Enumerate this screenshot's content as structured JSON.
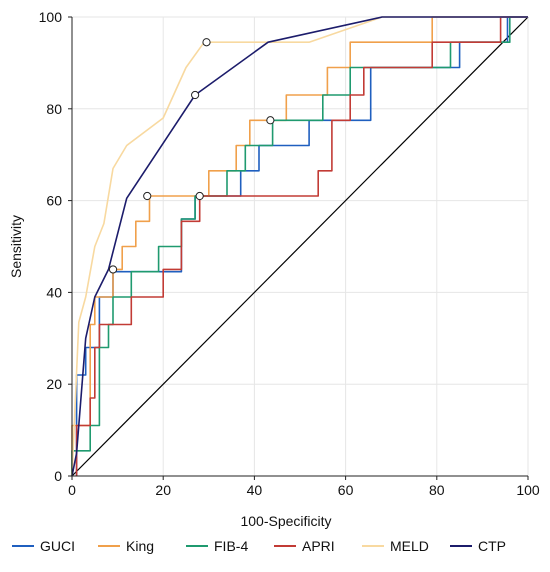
{
  "chart_data": {
    "type": "line",
    "xlabel": "100-Specificity",
    "ylabel": "Sensitivity",
    "xlim": [
      0,
      100
    ],
    "ylim": [
      0,
      100
    ],
    "xticks": [
      "0",
      "20",
      "40",
      "60",
      "80",
      "100"
    ],
    "yticks": [
      "0",
      "20",
      "40",
      "60",
      "80",
      "100"
    ],
    "grid": true,
    "legend_position": "bottom",
    "reference_line": {
      "x": [
        0,
        100
      ],
      "y": [
        0,
        100
      ],
      "color": "#000000"
    },
    "series": [
      {
        "name": "GUCI",
        "color": "#1f5fbf",
        "points": [
          [
            1,
            0
          ],
          [
            1,
            22
          ],
          [
            3,
            22
          ],
          [
            3,
            28
          ],
          [
            6,
            28
          ],
          [
            6,
            39
          ],
          [
            9,
            39
          ],
          [
            9,
            44.5
          ],
          [
            24,
            44.5
          ],
          [
            24,
            56
          ],
          [
            27,
            56
          ],
          [
            27,
            61
          ],
          [
            37,
            61
          ],
          [
            37,
            66.5
          ],
          [
            41,
            66.5
          ],
          [
            41,
            72
          ],
          [
            52,
            72
          ],
          [
            52,
            77.5
          ],
          [
            65.5,
            77.5
          ],
          [
            65.5,
            89
          ],
          [
            85,
            89
          ],
          [
            85,
            94.5
          ],
          [
            95.5,
            94.5
          ],
          [
            95.5,
            100
          ],
          [
            100,
            100
          ]
        ]
      },
      {
        "name": "King",
        "color": "#f0a04b",
        "points": [
          [
            0,
            0
          ],
          [
            0,
            11
          ],
          [
            4,
            11
          ],
          [
            4,
            33
          ],
          [
            5,
            33
          ],
          [
            5,
            39
          ],
          [
            9,
            39
          ],
          [
            9,
            45
          ],
          [
            11,
            45
          ],
          [
            11,
            50
          ],
          [
            14,
            50
          ],
          [
            14,
            55.5
          ],
          [
            17,
            55.5
          ],
          [
            17,
            61
          ],
          [
            30,
            61
          ],
          [
            30,
            66.5
          ],
          [
            36,
            66.5
          ],
          [
            36,
            72
          ],
          [
            39,
            72
          ],
          [
            39,
            77.5
          ],
          [
            47,
            77.5
          ],
          [
            47,
            83
          ],
          [
            56,
            83
          ],
          [
            56,
            89
          ],
          [
            61,
            89
          ],
          [
            61,
            94.5
          ],
          [
            79,
            94.5
          ],
          [
            79,
            100
          ],
          [
            100,
            100
          ]
        ]
      },
      {
        "name": "FIB-4",
        "color": "#1f9a6f",
        "points": [
          [
            0,
            0
          ],
          [
            0,
            5.5
          ],
          [
            4,
            5.5
          ],
          [
            4,
            11
          ],
          [
            6,
            11
          ],
          [
            6,
            28
          ],
          [
            8,
            28
          ],
          [
            8,
            33
          ],
          [
            9,
            33
          ],
          [
            9,
            39
          ],
          [
            13,
            39
          ],
          [
            13,
            44.5
          ],
          [
            19,
            44.5
          ],
          [
            19,
            50
          ],
          [
            24,
            50
          ],
          [
            24,
            56
          ],
          [
            27,
            56
          ],
          [
            27,
            61
          ],
          [
            34,
            61
          ],
          [
            34,
            66.5
          ],
          [
            38,
            66.5
          ],
          [
            38,
            72
          ],
          [
            44,
            72
          ],
          [
            44,
            77.5
          ],
          [
            55,
            77.5
          ],
          [
            55,
            83
          ],
          [
            61,
            83
          ],
          [
            61,
            89
          ],
          [
            83,
            89
          ],
          [
            83,
            94.5
          ],
          [
            96,
            94.5
          ],
          [
            96,
            100
          ],
          [
            100,
            100
          ]
        ]
      },
      {
        "name": "APRI",
        "color": "#c23b35",
        "points": [
          [
            1,
            0
          ],
          [
            1,
            11
          ],
          [
            4,
            11
          ],
          [
            4,
            17
          ],
          [
            5,
            17
          ],
          [
            5,
            28
          ],
          [
            6,
            28
          ],
          [
            6,
            33
          ],
          [
            13,
            33
          ],
          [
            13,
            39
          ],
          [
            20,
            39
          ],
          [
            20,
            45
          ],
          [
            24,
            45
          ],
          [
            24,
            55.5
          ],
          [
            28,
            55.5
          ],
          [
            28,
            61
          ],
          [
            54,
            61
          ],
          [
            54,
            66.5
          ],
          [
            57,
            66.5
          ],
          [
            57,
            77.5
          ],
          [
            61,
            77.5
          ],
          [
            61,
            83
          ],
          [
            64,
            83
          ],
          [
            64,
            89
          ],
          [
            79,
            89
          ],
          [
            79,
            94.5
          ],
          [
            94,
            94.5
          ],
          [
            94,
            100
          ],
          [
            100,
            100
          ]
        ]
      },
      {
        "name": "MELD",
        "color": "#f8d9a0",
        "points": [
          [
            0,
            0
          ],
          [
            1.5,
            33.5
          ],
          [
            3,
            39
          ],
          [
            5,
            50
          ],
          [
            7,
            55
          ],
          [
            9,
            67
          ],
          [
            12,
            72
          ],
          [
            20,
            78
          ],
          [
            25,
            89
          ],
          [
            29,
            94.5
          ],
          [
            52,
            94.5
          ],
          [
            68,
            100
          ],
          [
            100,
            100
          ]
        ]
      },
      {
        "name": "CTP",
        "color": "#1c1c6b",
        "points": [
          [
            0,
            0
          ],
          [
            1,
            5
          ],
          [
            3,
            30
          ],
          [
            5,
            39
          ],
          [
            8,
            45
          ],
          [
            12,
            60.5
          ],
          [
            27,
            83
          ],
          [
            43,
            94.5
          ],
          [
            68,
            100
          ],
          [
            100,
            100
          ]
        ]
      }
    ],
    "cutoff_points": [
      {
        "series": "MELD",
        "x": 29.5,
        "y": 94.5
      },
      {
        "series": "CTP",
        "x": 27,
        "y": 83
      },
      {
        "series": "King",
        "x": 16.5,
        "y": 61
      },
      {
        "series": "FIB-4",
        "x": 43.5,
        "y": 77.5
      },
      {
        "series": "APRI",
        "x": 28,
        "y": 61
      },
      {
        "series": "GUCI",
        "x": 9,
        "y": 45
      }
    ]
  }
}
